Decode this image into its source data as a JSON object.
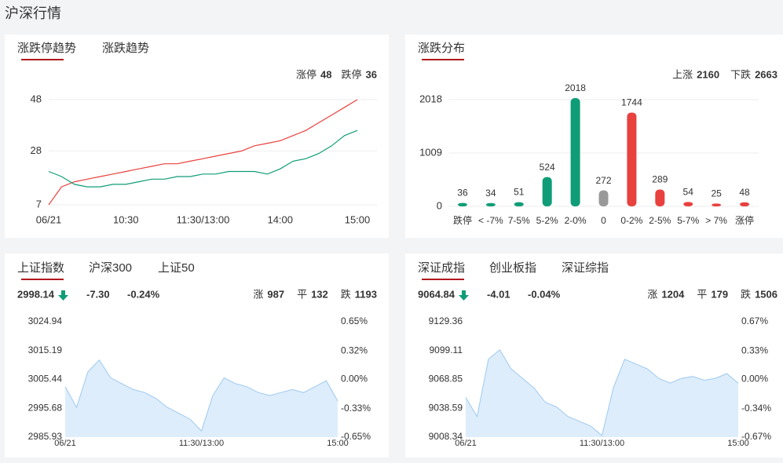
{
  "title": "沪深行情",
  "chart_data": [
    {
      "type": "line",
      "tabs": [
        "涨跌停趋势",
        "涨跌趋势"
      ],
      "x": [
        0,
        10,
        20,
        30,
        40,
        50,
        60,
        70,
        80,
        90,
        100,
        110,
        120,
        130,
        140,
        150,
        160,
        170,
        180,
        190,
        200,
        210,
        220,
        230,
        240
      ],
      "xlim": [
        0,
        240
      ],
      "xticks": [
        {
          "value": 0,
          "label": "06/21"
        },
        {
          "value": 60,
          "label": "10:30"
        },
        {
          "value": 120,
          "label": "11:30/13:00"
        },
        {
          "value": 180,
          "label": "14:00"
        },
        {
          "value": 240,
          "label": "15:00"
        }
      ],
      "ylim": [
        7,
        48
      ],
      "yticks": [
        7,
        28,
        48
      ],
      "grid": true,
      "series": [
        {
          "name": "涨停",
          "color": "#e8413e",
          "current": 48,
          "values": [
            7,
            14,
            16,
            17,
            18,
            19,
            20,
            21,
            22,
            23,
            23,
            24,
            25,
            26,
            27,
            28,
            30,
            31,
            32,
            34,
            36,
            39,
            42,
            45,
            48
          ]
        },
        {
          "name": "跌停",
          "color": "#0f9d77",
          "current": 36,
          "values": [
            20,
            18,
            15,
            14,
            14,
            15,
            15,
            16,
            17,
            17,
            18,
            18,
            19,
            19,
            20,
            20,
            20,
            19,
            21,
            24,
            25,
            27,
            30,
            34,
            36
          ]
        }
      ]
    },
    {
      "type": "bar",
      "tabs": [
        "涨跌分布"
      ],
      "categories": [
        "跌停",
        "< -7%",
        "7-5%",
        "5-2%",
        "2-0%",
        "0",
        "0-2%",
        "2-5%",
        "5-7%",
        "> 7%",
        "涨停"
      ],
      "values": [
        36,
        34,
        51,
        524,
        2018,
        272,
        1744,
        289,
        54,
        25,
        48
      ],
      "colors": [
        "#0f9d77",
        "#0f9d77",
        "#0f9d77",
        "#0f9d77",
        "#0f9d77",
        "#999999",
        "#e8413e",
        "#e8413e",
        "#e8413e",
        "#e8413e",
        "#e8413e"
      ],
      "ylim": [
        0,
        2018
      ],
      "yticks": [
        0,
        1009,
        2018
      ],
      "grid": true,
      "legend": [
        {
          "name": "上涨",
          "value": 2160,
          "color": "#e8413e"
        },
        {
          "name": "下跌",
          "value": 2663,
          "color": "#0f9d77"
        }
      ]
    },
    {
      "type": "area",
      "tabs": [
        "上证指数",
        "沪深300",
        "上证50"
      ],
      "quote": {
        "price": "2998.14",
        "change": "-7.30",
        "change_pct": "-0.24%",
        "color": "#0f9d77"
      },
      "stats": [
        {
          "name": "涨",
          "value": 987,
          "color": "#e8413e"
        },
        {
          "name": "平",
          "value": 132,
          "color": "#999999"
        },
        {
          "name": "跌",
          "value": 1193,
          "color": "#0f9d77"
        }
      ],
      "x": [
        0,
        10,
        20,
        30,
        40,
        50,
        60,
        70,
        80,
        90,
        100,
        110,
        120,
        130,
        140,
        150,
        160,
        170,
        180,
        190,
        200,
        210,
        220,
        230,
        240
      ],
      "xlim": [
        0,
        240
      ],
      "xticks": [
        {
          "value": 0,
          "label": "06/21"
        },
        {
          "value": 120,
          "label": "11:30/13:00"
        },
        {
          "value": 240,
          "label": "15:00"
        }
      ],
      "values": [
        3003,
        2996,
        3008,
        3012,
        3006,
        3004,
        3002,
        3001,
        2999,
        2996,
        2994,
        2992,
        2988,
        3000,
        3006,
        3004,
        3003,
        3001,
        3000,
        3001,
        3002,
        3001,
        3003,
        3005,
        2998.14
      ],
      "color": "#9fc9ef",
      "fill": "#ddedfc",
      "up_color": "#e8413e",
      "down_color": "#0f9d77",
      "flat_color": "#999999",
      "ylim": [
        2985.93,
        3024.94
      ],
      "yticks": [
        2985.93,
        2995.68,
        3005.44,
        3015.19,
        3024.94
      ],
      "y2lim": [
        -0.65,
        0.65
      ],
      "y2ticks": [
        {
          "value": -0.65,
          "label": "-0.65%"
        },
        {
          "value": -0.33,
          "label": "-0.33%"
        },
        {
          "value": 0,
          "label": "0.00%"
        },
        {
          "value": 0.32,
          "label": "0.32%"
        },
        {
          "value": 0.65,
          "label": "0.65%"
        }
      ]
    },
    {
      "type": "area",
      "tabs": [
        "深证成指",
        "创业板指",
        "深证综指"
      ],
      "quote": {
        "price": "9064.84",
        "change": "-4.01",
        "change_pct": "-0.04%",
        "color": "#0f9d77"
      },
      "stats": [
        {
          "name": "涨",
          "value": 1204,
          "color": "#e8413e"
        },
        {
          "name": "平",
          "value": 179,
          "color": "#999999"
        },
        {
          "name": "跌",
          "value": 1506,
          "color": "#0f9d77"
        }
      ],
      "x": [
        0,
        10,
        20,
        30,
        40,
        50,
        60,
        70,
        80,
        90,
        100,
        110,
        120,
        130,
        140,
        150,
        160,
        170,
        180,
        190,
        200,
        210,
        220,
        230,
        240
      ],
      "xlim": [
        0,
        240
      ],
      "xticks": [
        {
          "value": 0,
          "label": "06/21"
        },
        {
          "value": 120,
          "label": "11:30/13:00"
        },
        {
          "value": 240,
          "label": "15:00"
        }
      ],
      "values": [
        9050,
        9030,
        9090,
        9100,
        9080,
        9070,
        9060,
        9045,
        9040,
        9030,
        9025,
        9020,
        9010,
        9060,
        9090,
        9085,
        9080,
        9070,
        9065,
        9070,
        9072,
        9068,
        9070,
        9075,
        9064.84
      ],
      "color": "#9fc9ef",
      "fill": "#ddedfc",
      "up_color": "#e8413e",
      "down_color": "#0f9d77",
      "flat_color": "#999999",
      "ylim": [
        9008.34,
        9129.36
      ],
      "yticks": [
        9008.34,
        9038.59,
        9068.85,
        9099.11,
        9129.36
      ],
      "y2lim": [
        -0.67,
        0.67
      ],
      "y2ticks": [
        {
          "value": -0.67,
          "label": "-0.67%"
        },
        {
          "value": -0.34,
          "label": "-0.34%"
        },
        {
          "value": 0,
          "label": "0.00%"
        },
        {
          "value": 0.33,
          "label": "0.33%"
        },
        {
          "value": 0.67,
          "label": "0.67%"
        }
      ]
    }
  ]
}
